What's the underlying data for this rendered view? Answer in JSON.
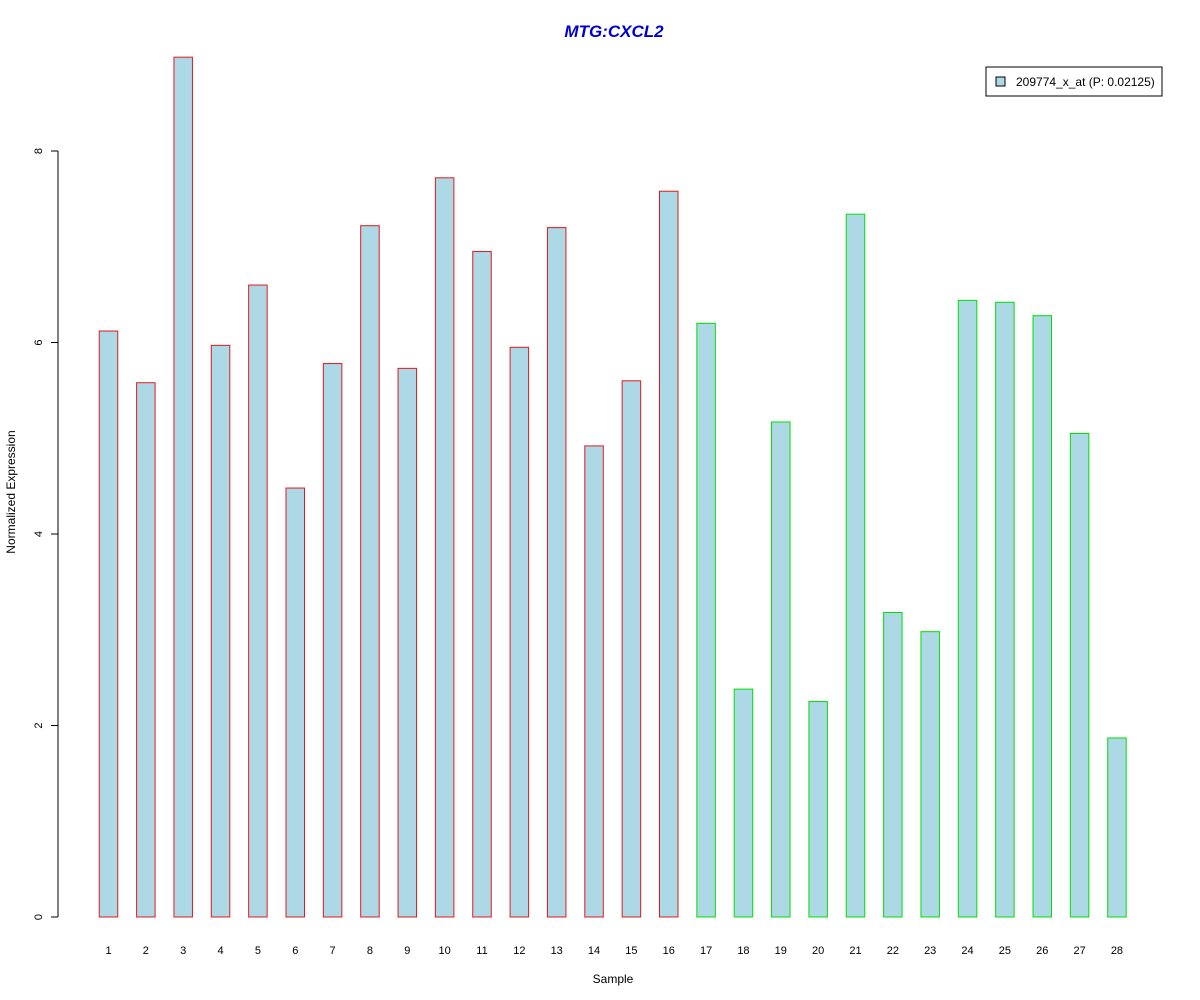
{
  "chart_data": {
    "type": "bar",
    "title": "MTG:CXCL2",
    "xlabel": "Sample",
    "ylabel": "Normalized Expression",
    "categories": [
      "1",
      "2",
      "3",
      "4",
      "5",
      "6",
      "7",
      "8",
      "9",
      "10",
      "11",
      "12",
      "13",
      "14",
      "15",
      "16",
      "17",
      "18",
      "19",
      "20",
      "21",
      "22",
      "23",
      "24",
      "25",
      "26",
      "27",
      "28"
    ],
    "series": [
      {
        "name": "209774_x_at (P: 0.02125)",
        "values": [
          6.12,
          5.58,
          8.98,
          5.97,
          6.6,
          4.48,
          5.78,
          7.22,
          5.73,
          7.72,
          6.95,
          5.95,
          7.2,
          4.92,
          5.6,
          7.58,
          6.2,
          2.38,
          5.17,
          2.25,
          7.34,
          3.18,
          2.98,
          6.44,
          6.42,
          6.28,
          5.05,
          1.87
        ]
      }
    ],
    "groups": [
      {
        "samples": "1-16",
        "border_color": "#e31a1c"
      },
      {
        "samples": "17-28",
        "border_color": "#00e000"
      }
    ],
    "bar_fill": "#add8e6",
    "title_color": "#0000cd",
    "yticks": [
      0,
      2,
      4,
      6,
      8
    ],
    "ylim": [
      0,
      9.0
    ],
    "grid": false,
    "legend": {
      "position": "top-right",
      "label": "209774_x_at (P: 0.02125)"
    }
  }
}
